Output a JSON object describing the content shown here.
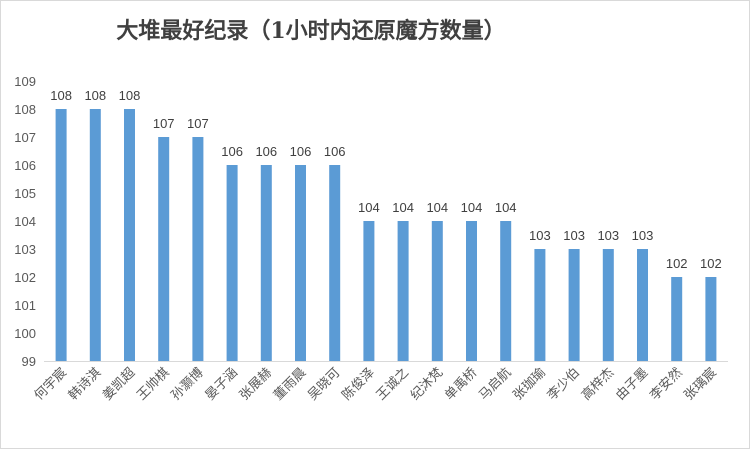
{
  "chart_data": {
    "type": "bar",
    "title": "大堆最好纪录（1小时内还原魔方数量）",
    "xlabel": "",
    "ylabel": "",
    "ylim": [
      99,
      109
    ],
    "yticks": [
      99,
      100,
      101,
      102,
      103,
      104,
      105,
      106,
      107,
      108,
      109
    ],
    "grid": false,
    "legend": "none",
    "bar_color": "#5B9BD5",
    "categories": [
      "何宇宸",
      "韩诗淇",
      "姜凯超",
      "王帅棋",
      "孙灏博",
      "晏子涵",
      "张展赫",
      "董雨晨",
      "吴晓可",
      "陈俊泽",
      "王诚之",
      "纪沐梵",
      "单禹桥",
      "马启航",
      "张珈瑜",
      "李少伯",
      "高梓杰",
      "由子墨",
      "李安然",
      "张璃宸"
    ],
    "values": [
      108,
      108,
      108,
      107,
      107,
      106,
      106,
      106,
      106,
      104,
      104,
      104,
      104,
      104,
      103,
      103,
      103,
      103,
      102,
      102
    ]
  }
}
